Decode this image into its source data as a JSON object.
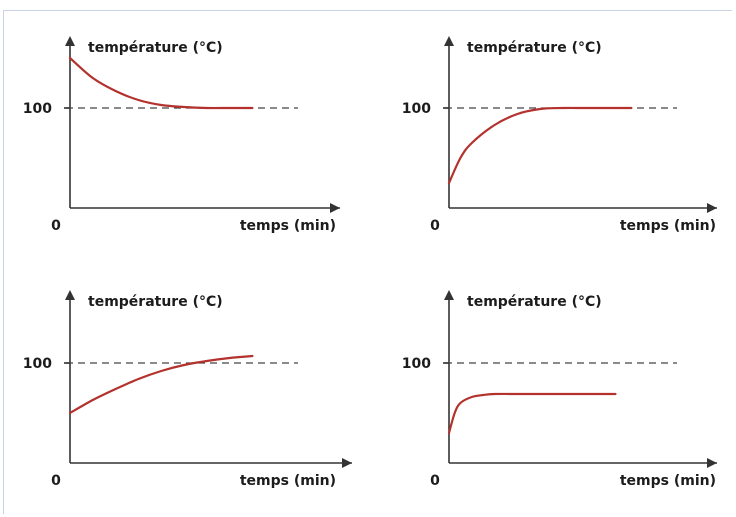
{
  "colors": {
    "curve": "#b3322d",
    "axis": "#333333",
    "reference": "#444444"
  },
  "chart_data": [
    {
      "type": "line",
      "ylabel": "température (°C)",
      "xlabel": "temps (min)",
      "origin_label": "0",
      "yticks": [
        100
      ],
      "xlim": [
        0,
        10
      ],
      "ylim": [
        0,
        160
      ],
      "reference_line": 100,
      "series": [
        {
          "x": [
            0,
            1,
            2,
            3,
            4,
            5,
            6,
            7,
            8
          ],
          "y": [
            150,
            130,
            117,
            108,
            103,
            101,
            100,
            100,
            100
          ]
        }
      ]
    },
    {
      "type": "line",
      "ylabel": "température (°C)",
      "xlabel": "temps (min)",
      "origin_label": "0",
      "yticks": [
        100
      ],
      "xlim": [
        0,
        10
      ],
      "ylim": [
        0,
        160
      ],
      "reference_line": 100,
      "series": [
        {
          "x": [
            0,
            0.5,
            1,
            2,
            3,
            4,
            5,
            6,
            7,
            8
          ],
          "y": [
            25,
            50,
            65,
            83,
            94,
            99,
            100,
            100,
            100,
            100
          ]
        }
      ]
    },
    {
      "type": "line",
      "ylabel": "température (°C)",
      "xlabel": "temps (min)",
      "origin_label": "0",
      "yticks": [
        100
      ],
      "xlim": [
        0,
        10
      ],
      "ylim": [
        0,
        160
      ],
      "reference_line": 100,
      "series": [
        {
          "x": [
            0,
            1,
            2,
            3,
            4,
            5,
            6,
            7,
            8
          ],
          "y": [
            50,
            63,
            74,
            84,
            92,
            98,
            102,
            105,
            107
          ]
        }
      ]
    },
    {
      "type": "line",
      "ylabel": "température (°C)",
      "xlabel": "temps (min)",
      "origin_label": "0",
      "yticks": [
        100
      ],
      "xlim": [
        0,
        10
      ],
      "ylim": [
        0,
        160
      ],
      "reference_line": 100,
      "series": [
        {
          "x": [
            0,
            0.25,
            0.5,
            1,
            1.5,
            2,
            3,
            5,
            7.3
          ],
          "y": [
            30,
            50,
            60,
            66,
            68,
            69,
            69,
            69,
            69
          ]
        }
      ]
    }
  ]
}
